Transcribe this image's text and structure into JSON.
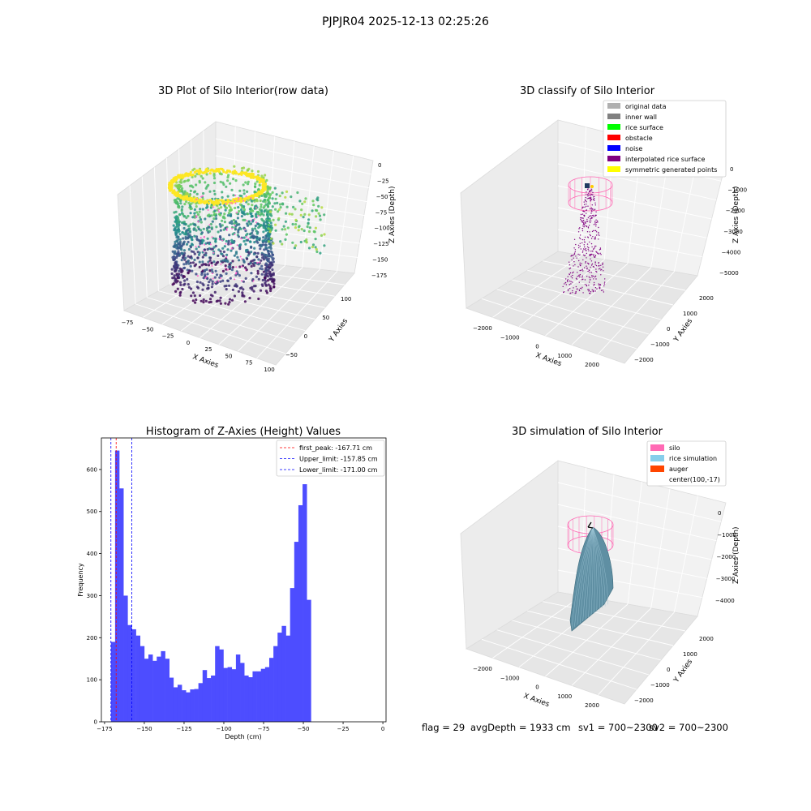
{
  "figure": {
    "suptitle": "PJPJR04 2025-12-13 02:25:26",
    "footer": [
      "flag = 29",
      "avgDepth = 1933 cm",
      "sv1 = 700~2300",
      "sv2 = 700~2300"
    ]
  },
  "chart_data": [
    {
      "type": "scatter",
      "projection": "3d",
      "title": "3D Plot of Silo Interior(row data)",
      "xlabel": "X Axies",
      "ylabel": "Y Axies",
      "zlabel": "Z Axies (Depth)",
      "xticks": [
        "−75",
        "−50",
        "−25",
        "0",
        "25",
        "50",
        "75",
        "100"
      ],
      "yticks": [
        "−50",
        "0",
        "50",
        "100"
      ],
      "zticks": [
        "0",
        "−25",
        "−50",
        "−75",
        "−100",
        "−125",
        "−150",
        "−175"
      ],
      "xlim": [
        -80,
        105
      ],
      "ylim": [
        -75,
        125
      ],
      "zlim": [
        -180,
        0
      ],
      "colormap": "viridis",
      "grid": true
    },
    {
      "type": "scatter",
      "projection": "3d",
      "title": "3D classify of Silo Interior",
      "xlabel": "X Axies",
      "ylabel": "Y Axies",
      "zlabel": "Z Axies (Depth)",
      "xticks": [
        "−2000",
        "−1000",
        "0",
        "1000",
        "2000"
      ],
      "yticks": [
        "−2000",
        "−1000",
        "0",
        "1000",
        "2000"
      ],
      "zticks": [
        "0",
        "−1000",
        "−2000",
        "−3000",
        "−4000",
        "−5000"
      ],
      "legend_position": "top-right",
      "legend": [
        {
          "label": "original data",
          "color": "#b0b0b0"
        },
        {
          "label": "inner wall",
          "color": "#808080"
        },
        {
          "label": "rice surface",
          "color": "#00ff00"
        },
        {
          "label": "obstacle",
          "color": "#ff0000"
        },
        {
          "label": "noise",
          "color": "#0000ff"
        },
        {
          "label": "interpolated rice surface",
          "color": "#800080"
        },
        {
          "label": "symmetric generated points",
          "color": "#ffff00"
        }
      ],
      "grid": true
    },
    {
      "type": "bar",
      "title": "Histogram of Z-Axies (Height) Values",
      "xlabel": "Depth (cm)",
      "ylabel": "Frequency",
      "xlim": [
        -177,
        2
      ],
      "ylim": [
        0,
        675
      ],
      "xticks": [
        -175,
        -150,
        -125,
        -100,
        -75,
        -50,
        -25,
        0
      ],
      "yticks": [
        0,
        100,
        200,
        300,
        400,
        500,
        600
      ],
      "bin_start": -171,
      "bin_width": 2.62,
      "values": [
        190,
        645,
        555,
        300,
        230,
        220,
        205,
        180,
        150,
        160,
        145,
        155,
        168,
        150,
        105,
        82,
        88,
        75,
        70,
        77,
        78,
        92,
        123,
        104,
        110,
        180,
        172,
        128,
        130,
        125,
        160,
        140,
        110,
        106,
        120,
        120,
        126,
        130,
        152,
        180,
        212,
        228,
        205,
        318,
        428,
        515,
        565,
        290
      ],
      "bar_color": "#4d4dff",
      "vlines": [
        {
          "label": "first_peak: -167.71 cm",
          "x": -167.71,
          "color": "#ff0000"
        },
        {
          "label": "Upper_limit: -157.85 cm",
          "x": -157.85,
          "color": "#0000ff"
        },
        {
          "label": "Lower_limit: -171.00 cm",
          "x": -171.0,
          "color": "#0000ff"
        }
      ],
      "legend_position": "top-right"
    },
    {
      "type": "surface",
      "projection": "3d",
      "title": "3D simulation of Silo Interior",
      "xlabel": "X Axies",
      "ylabel": "Y Axies",
      "zlabel": "Z Axies (Depth)",
      "xticks": [
        "−2000",
        "−1000",
        "0",
        "1000",
        "2000"
      ],
      "yticks": [
        "−2000",
        "−1000",
        "0",
        "1000",
        "2000"
      ],
      "zticks": [
        "0",
        "−1000",
        "−2000",
        "−3000",
        "−4000"
      ],
      "legend_position": "top-right",
      "legend": [
        {
          "label": "silo",
          "color": "#ff69b4"
        },
        {
          "label": "rice simulation",
          "color": "#87ceeb"
        },
        {
          "label": "auger",
          "color": "#ff4500"
        },
        {
          "label": "center(100,-17)",
          "color": "#ffffff"
        }
      ],
      "grid": true
    }
  ]
}
